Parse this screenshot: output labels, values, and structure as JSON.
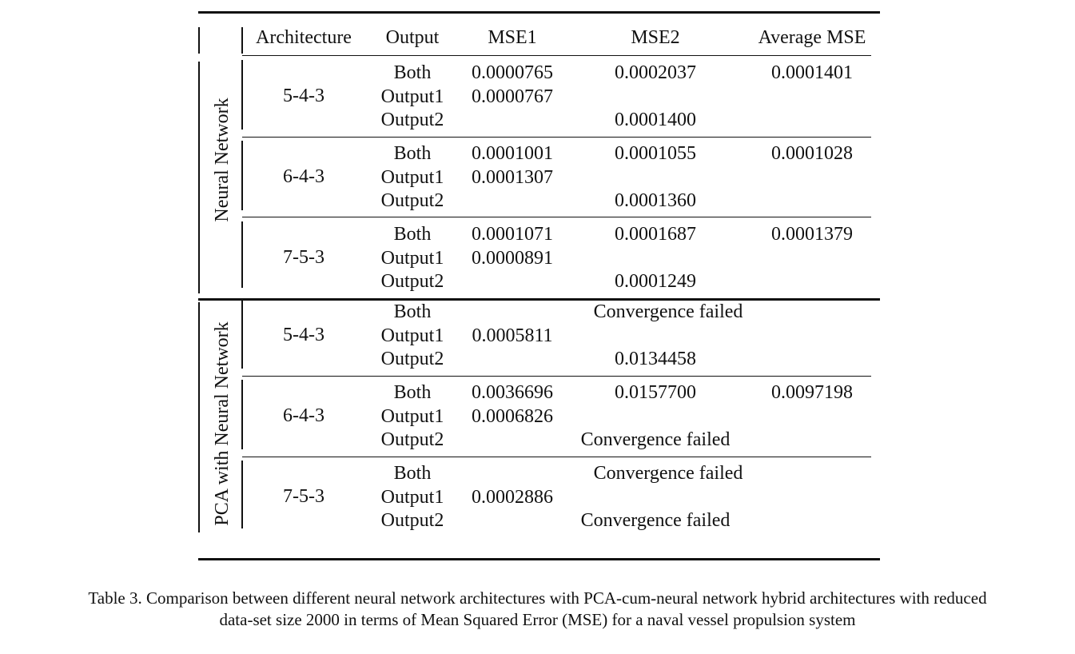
{
  "table": {
    "headers": {
      "architecture": "Architecture",
      "output": "Output",
      "mse1": "MSE1",
      "mse2": "MSE2",
      "average": "Average MSE"
    },
    "groups": [
      {
        "label": "Neural Network",
        "blocks": [
          {
            "arch": "5-4-3",
            "rows": [
              {
                "output": "Both",
                "mse1": "0.0000765",
                "mse2": "0.0002037",
                "avg": "0.0001401"
              },
              {
                "output": "Output1",
                "mse1": "0.0000767",
                "mse2": "",
                "avg": ""
              },
              {
                "output": "Output2",
                "mse1": "",
                "mse2": "0.0001400",
                "avg": ""
              }
            ]
          },
          {
            "arch": "6-4-3",
            "rows": [
              {
                "output": "Both",
                "mse1": "0.0001001",
                "mse2": "0.0001055",
                "avg": "0.0001028"
              },
              {
                "output": "Output1",
                "mse1": "0.0001307",
                "mse2": "",
                "avg": ""
              },
              {
                "output": "Output2",
                "mse1": "",
                "mse2": "0.0001360",
                "avg": ""
              }
            ]
          },
          {
            "arch": "7-5-3",
            "rows": [
              {
                "output": "Both",
                "mse1": "0.0001071",
                "mse2": "0.0001687",
                "avg": "0.0001379"
              },
              {
                "output": "Output1",
                "mse1": "0.0000891",
                "mse2": "",
                "avg": ""
              },
              {
                "output": "Output2",
                "mse1": "",
                "mse2": "0.0001249",
                "avg": ""
              }
            ]
          }
        ]
      },
      {
        "label": "PCA with Neural Network",
        "blocks": [
          {
            "arch": "5-4-3",
            "rows": [
              {
                "output": "Both",
                "mse1": "",
                "mse2": "Convergence failed",
                "avg": ""
              },
              {
                "output": "Output1",
                "mse1": "0.0005811",
                "mse2": "",
                "avg": ""
              },
              {
                "output": "Output2",
                "mse1": "",
                "mse2": "0.0134458",
                "avg": ""
              }
            ]
          },
          {
            "arch": "6-4-3",
            "rows": [
              {
                "output": "Both",
                "mse1": "0.0036696",
                "mse2": "0.0157700",
                "avg": "0.0097198"
              },
              {
                "output": "Output1",
                "mse1": "0.0006826",
                "mse2": "",
                "avg": ""
              },
              {
                "output": "Output2",
                "mse1": "",
                "mse2": "Convergence failed",
                "avg": ""
              }
            ]
          },
          {
            "arch": "7-5-3",
            "rows": [
              {
                "output": "Both",
                "mse1": "",
                "mse2": "Convergence failed",
                "avg": ""
              },
              {
                "output": "Output1",
                "mse1": "0.0002886",
                "mse2": "",
                "avg": ""
              },
              {
                "output": "Output2",
                "mse1": "",
                "mse2": "Convergence failed",
                "avg": ""
              }
            ]
          }
        ]
      }
    ]
  },
  "caption": "Table 3. Comparison between different neural network architectures with PCA-cum-neural network hybrid architectures with reduced data-set size 2000 in terms of Mean Squared Error (MSE) for a naval vessel propulsion system"
}
